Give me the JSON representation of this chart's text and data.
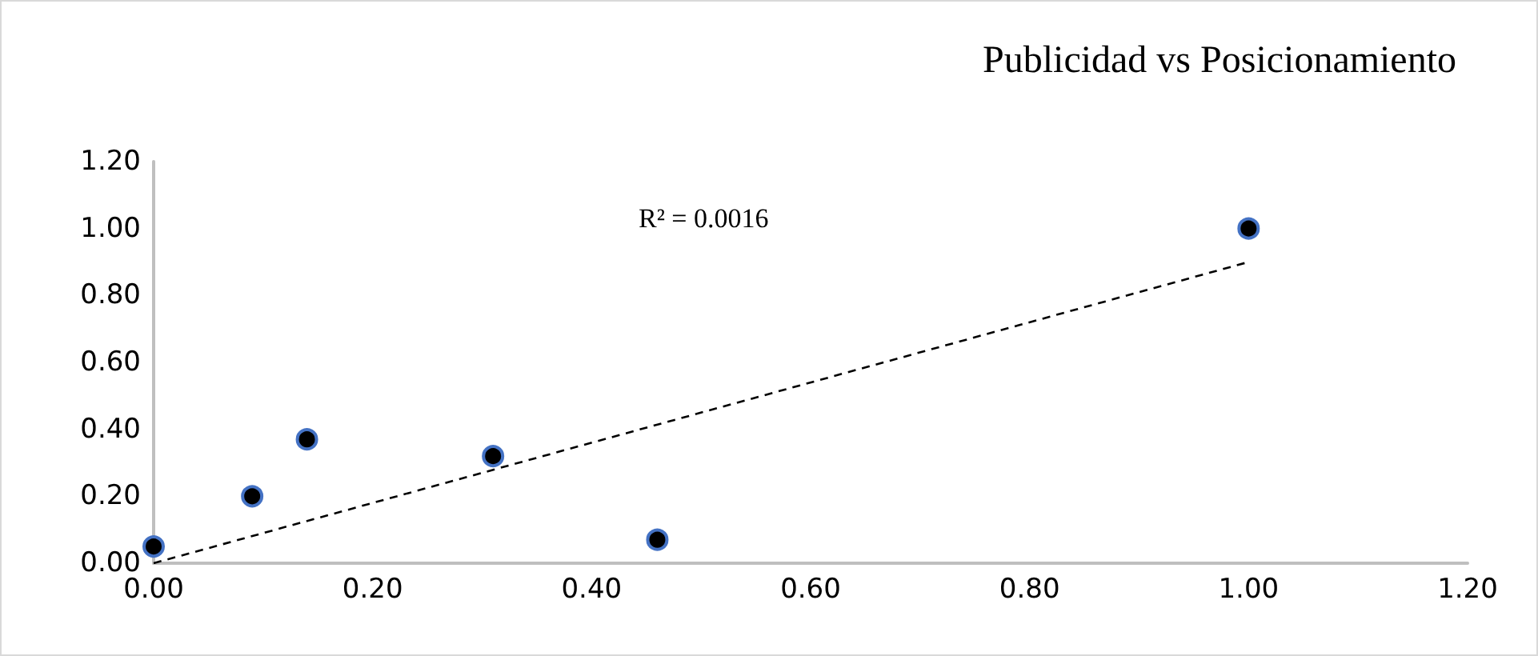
{
  "chart_data": {
    "type": "scatter",
    "title": "Publicidad vs Posicionamiento",
    "series": [
      {
        "color": "#000000",
        "x": [
          0.0,
          0.09,
          0.14,
          0.31,
          0.46,
          1.0
        ],
        "values": [
          0.05,
          0.2,
          0.37,
          0.32,
          0.07,
          1.0
        ],
        "marker": "circle"
      },
      {
        "type": "line",
        "color": "#000000",
        "x": [
          0.0,
          1.0
        ],
        "values": [
          0.0,
          0.9
        ],
        "marker": "none",
        "line_style": "dashed"
      }
    ],
    "annotations": [
      "R² = 0.0016"
    ],
    "xlim": [
      0,
      1.2
    ],
    "xticks": [
      {
        "value": 0,
        "label": "0.00"
      },
      {
        "value": 0.2,
        "label": "0.20"
      },
      {
        "value": 0.4,
        "label": "0.40"
      },
      {
        "value": 0.6,
        "label": "0.60"
      },
      {
        "value": 0.8,
        "label": "0.80"
      },
      {
        "value": 1.0,
        "label": "1.00"
      },
      {
        "value": 1.2,
        "label": "1.20"
      }
    ],
    "ylim": [
      0,
      1.2
    ],
    "yticks": [
      {
        "value": 0,
        "label": "0.00"
      },
      {
        "value": 0.2,
        "label": "0.20"
      },
      {
        "value": 0.4,
        "label": "0.40"
      },
      {
        "value": 0.6,
        "label": "0.60"
      },
      {
        "value": 0.8,
        "label": "0.80"
      },
      {
        "value": 1.0,
        "label": "1.00"
      },
      {
        "value": 1.2,
        "label": "1.20"
      }
    ],
    "grid": false
  }
}
